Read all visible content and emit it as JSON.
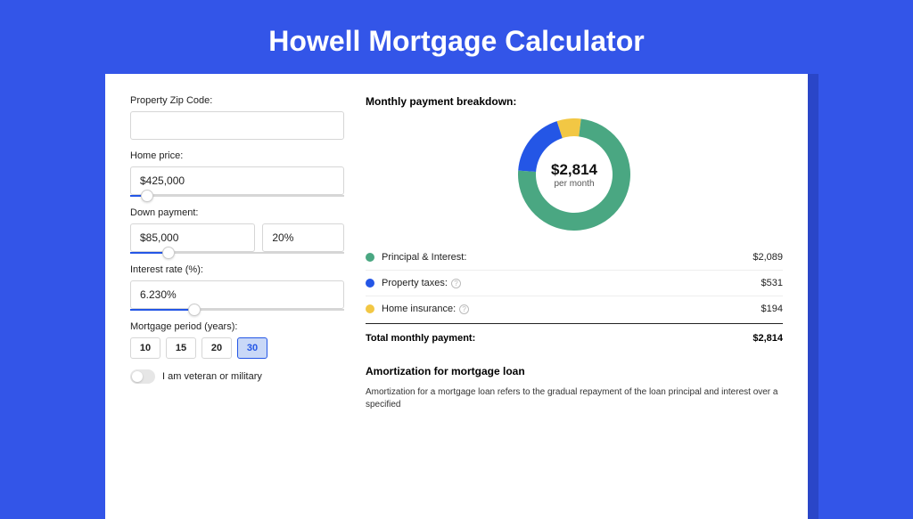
{
  "page": {
    "title": "Howell Mortgage Calculator",
    "background_color": "#3355e8",
    "card_shadow_color": "#2a46c8",
    "card_background": "#ffffff"
  },
  "form": {
    "zip_label": "Property Zip Code:",
    "zip_value": "",
    "home_price_label": "Home price:",
    "home_price_value": "$425,000",
    "home_price_slider_percent": 8,
    "down_payment_label": "Down payment:",
    "down_payment_amount": "$85,000",
    "down_payment_pct": "20%",
    "down_payment_slider_percent": 18,
    "interest_label": "Interest rate (%):",
    "interest_value": "6.230%",
    "interest_slider_percent": 30,
    "period_label": "Mortgage period (years):",
    "period_options": [
      "10",
      "15",
      "20",
      "30"
    ],
    "period_active_index": 3,
    "veteran_label": "I am veteran or military",
    "veteran_on": false,
    "slider_fill_color": "#2456e6",
    "slider_track_color": "#d6d6d6"
  },
  "breakdown": {
    "title": "Monthly payment breakdown:",
    "center_amount": "$2,814",
    "center_sub": "per month",
    "items": [
      {
        "label": "Principal & Interest:",
        "value": "$2,089",
        "color": "#4aa782",
        "has_info": false
      },
      {
        "label": "Property taxes:",
        "value": "$531",
        "color": "#2456e6",
        "has_info": true
      },
      {
        "label": "Home insurance:",
        "value": "$194",
        "color": "#f2c744",
        "has_info": true
      }
    ],
    "total_label": "Total monthly payment:",
    "total_value": "$2,814",
    "donut": {
      "size": 126,
      "thickness": 20,
      "slices": [
        {
          "color": "#f2c744",
          "start_deg": -18,
          "sweep_deg": 25
        },
        {
          "color": "#2456e6",
          "start_deg": -86,
          "sweep_deg": 68
        },
        {
          "color": "#4aa782",
          "start_deg": 7,
          "sweep_deg": 267
        }
      ]
    }
  },
  "amortization": {
    "title": "Amortization for mortgage loan",
    "text": "Amortization for a mortgage loan refers to the gradual repayment of the loan principal and interest over a specified"
  }
}
